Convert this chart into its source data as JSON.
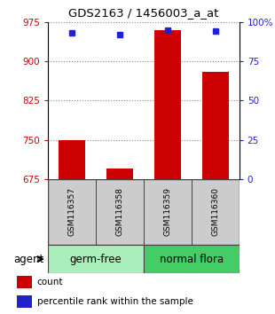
{
  "title": "GDS2163 / 1456003_a_at",
  "samples": [
    "GSM116357",
    "GSM116358",
    "GSM116359",
    "GSM116360"
  ],
  "bar_values": [
    750,
    695,
    960,
    880
  ],
  "percentile_values": [
    93,
    92,
    95,
    94
  ],
  "bar_color": "#cc0000",
  "percentile_color": "#2222cc",
  "ylim_left": [
    675,
    975
  ],
  "ylim_right": [
    0,
    100
  ],
  "yticks_left": [
    675,
    750,
    825,
    900,
    975
  ],
  "yticks_right": [
    0,
    25,
    50,
    75,
    100
  ],
  "groups": [
    {
      "label": "germ-free",
      "indices": [
        0,
        1
      ],
      "color": "#aaeebb"
    },
    {
      "label": "normal flora",
      "indices": [
        2,
        3
      ],
      "color": "#44cc66"
    }
  ],
  "agent_label": "agent",
  "legend_count_label": "count",
  "legend_pct_label": "percentile rank within the sample",
  "bar_width": 0.55,
  "base_value": 675,
  "grid_color": "#888888",
  "sample_box_color": "#cccccc",
  "sample_box_edgecolor": "#444444",
  "bg_color": "#ffffff"
}
